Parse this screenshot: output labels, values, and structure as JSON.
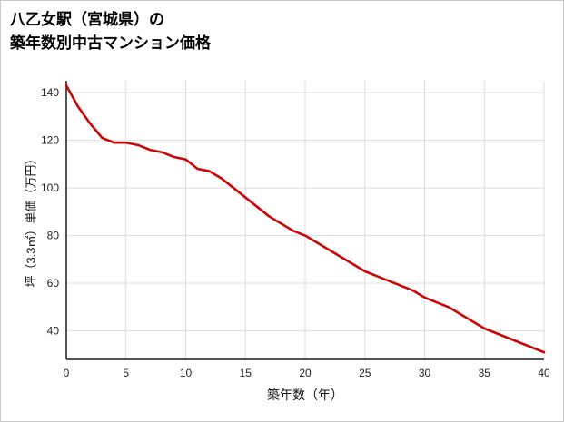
{
  "title": {
    "line1": "八乙女駅（宮城県）の",
    "line2": "築年数別中古マンション価格"
  },
  "chart_data": {
    "type": "line",
    "title": "八乙女駅（宮城県）の築年数別中古マンション価格",
    "xlabel": "築年数（年）",
    "ylabel": "坪（3.3㎡）単価（万円）",
    "x": [
      0,
      1,
      2,
      3,
      4,
      5,
      6,
      7,
      8,
      9,
      10,
      11,
      12,
      13,
      14,
      15,
      16,
      17,
      18,
      19,
      20,
      21,
      22,
      23,
      24,
      25,
      26,
      27,
      28,
      29,
      30,
      31,
      32,
      33,
      34,
      35,
      36,
      37,
      38,
      39,
      40
    ],
    "values": [
      143,
      134,
      127,
      121,
      119,
      119,
      118,
      116,
      115,
      113,
      112,
      108,
      107,
      104,
      100,
      96,
      92,
      88,
      85,
      82,
      80,
      77,
      74,
      71,
      68,
      65,
      63,
      61,
      59,
      57,
      54,
      52,
      50,
      47,
      44,
      41,
      39,
      37,
      35,
      33,
      31
    ],
    "xlim": [
      0,
      40
    ],
    "ylim": [
      28,
      145
    ],
    "x_ticks": [
      0,
      5,
      10,
      15,
      20,
      25,
      30,
      35,
      40
    ],
    "y_ticks": [
      40,
      60,
      80,
      100,
      120,
      140
    ],
    "grid": true,
    "legend": "none",
    "line_color": "#cc0505",
    "grid_color": "#dddddd",
    "axis_color": "#1a1a1a"
  }
}
